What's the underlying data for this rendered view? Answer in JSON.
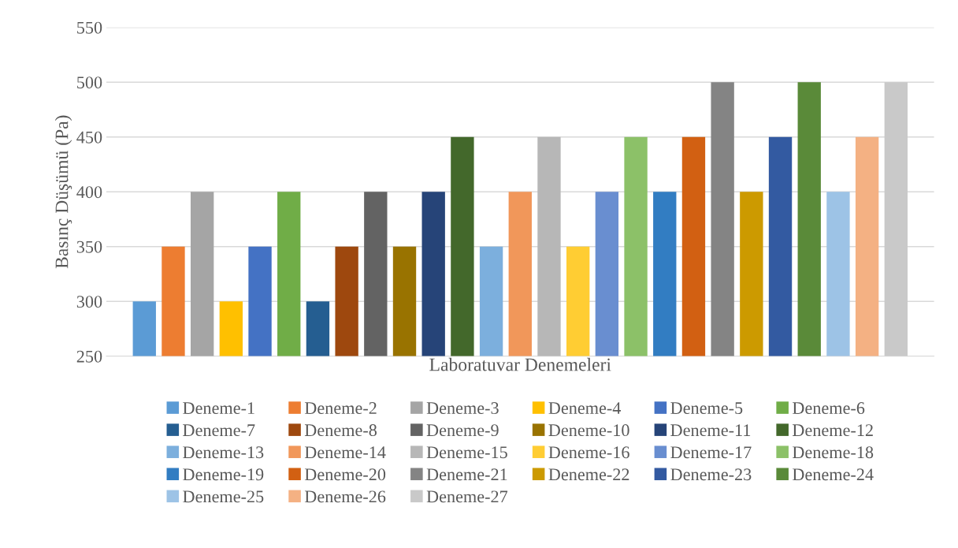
{
  "chart_data": {
    "type": "bar",
    "xlabel": "Laboratuvar Denemeleri",
    "ylabel": "Basınç Düşümü (Pa)",
    "categories": [
      null
    ],
    "ylim": [
      250,
      550
    ],
    "yticks": [
      250,
      300,
      350,
      400,
      450,
      500,
      550
    ],
    "grid": "y",
    "legend": "bottom",
    "series": [
      {
        "name": "Deneme-1",
        "color": "#5b9bd5",
        "values": [
          300
        ]
      },
      {
        "name": "Deneme-2",
        "color": "#ed7d31",
        "values": [
          350
        ]
      },
      {
        "name": "Deneme-3",
        "color": "#a5a5a5",
        "values": [
          400
        ]
      },
      {
        "name": "Deneme-4",
        "color": "#ffc000",
        "values": [
          300
        ]
      },
      {
        "name": "Deneme-5",
        "color": "#4472c4",
        "values": [
          350
        ]
      },
      {
        "name": "Deneme-6",
        "color": "#70ad47",
        "values": [
          400
        ]
      },
      {
        "name": "Deneme-7",
        "color": "#255e91",
        "values": [
          300
        ]
      },
      {
        "name": "Deneme-8",
        "color": "#9e480e",
        "values": [
          350
        ]
      },
      {
        "name": "Deneme-9",
        "color": "#636363",
        "values": [
          400
        ]
      },
      {
        "name": "Deneme-10",
        "color": "#997300",
        "values": [
          350
        ]
      },
      {
        "name": "Deneme-11",
        "color": "#264478",
        "values": [
          400
        ]
      },
      {
        "name": "Deneme-12",
        "color": "#43682b",
        "values": [
          450
        ]
      },
      {
        "name": "Deneme-13",
        "color": "#7cafdd",
        "values": [
          350
        ]
      },
      {
        "name": "Deneme-14",
        "color": "#f1975a",
        "values": [
          400
        ]
      },
      {
        "name": "Deneme-15",
        "color": "#b7b7b7",
        "values": [
          450
        ]
      },
      {
        "name": "Deneme-16",
        "color": "#ffcd33",
        "values": [
          350
        ]
      },
      {
        "name": "Deneme-17",
        "color": "#698ed0",
        "values": [
          400
        ]
      },
      {
        "name": "Deneme-18",
        "color": "#8cc168",
        "values": [
          450
        ]
      },
      {
        "name": "Deneme-19",
        "color": "#327dc2",
        "values": [
          400
        ]
      },
      {
        "name": "Deneme-20",
        "color": "#d26012",
        "values": [
          450
        ]
      },
      {
        "name": "Deneme-21",
        "color": "#848484",
        "values": [
          500
        ]
      },
      {
        "name": "Deneme-22",
        "color": "#cc9a00",
        "values": [
          400
        ]
      },
      {
        "name": "Deneme-23",
        "color": "#335aa1",
        "values": [
          450
        ]
      },
      {
        "name": "Deneme-24",
        "color": "#5a8a39",
        "values": [
          500
        ]
      },
      {
        "name": "Deneme-25",
        "color": "#9dc3e6",
        "values": [
          400
        ]
      },
      {
        "name": "Deneme-26",
        "color": "#f4b183",
        "values": [
          450
        ]
      },
      {
        "name": "Deneme-27",
        "color": "#c9c9c9",
        "values": [
          500
        ]
      }
    ]
  }
}
